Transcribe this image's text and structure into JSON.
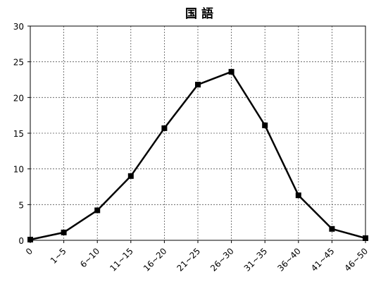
{
  "chart_data": {
    "type": "line",
    "title": "国 語",
    "xlabel": "",
    "ylabel": "",
    "categories": [
      "0",
      "1~5",
      "6~10",
      "11~15",
      "16~20",
      "21~25",
      "26~30",
      "31~35",
      "36~40",
      "41~45",
      "46~50"
    ],
    "series": [
      {
        "values": [
          0.1,
          1.1,
          4.2,
          9.0,
          15.7,
          21.8,
          23.6,
          16.1,
          6.3,
          1.6,
          0.3
        ]
      }
    ],
    "ylim": [
      0,
      30
    ],
    "yticks": [
      0,
      5,
      10,
      15,
      20,
      25,
      30
    ],
    "grid": true,
    "grid_style": "dashed",
    "marker": "square",
    "line_color": "#000000"
  }
}
